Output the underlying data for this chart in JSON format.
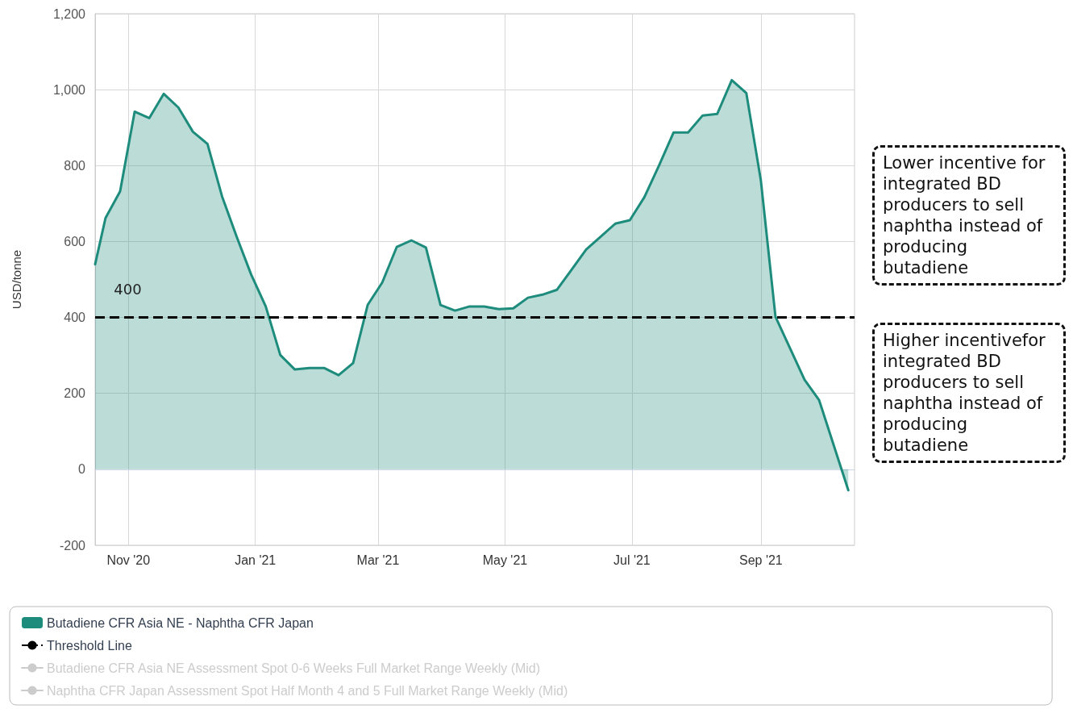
{
  "chart_data": {
    "type": "area",
    "ylabel": "USD/tonne",
    "x": [
      "2020-10-16",
      "2020-10-21",
      "2020-10-28",
      "2020-11-04",
      "2020-11-11",
      "2020-11-18",
      "2020-11-25",
      "2020-12-02",
      "2020-12-09",
      "2020-12-16",
      "2020-12-23",
      "2020-12-30",
      "2021-01-06",
      "2021-01-13",
      "2021-01-20",
      "2021-01-27",
      "2021-02-03",
      "2021-02-10",
      "2021-02-17",
      "2021-02-24",
      "2021-03-03",
      "2021-03-10",
      "2021-03-17",
      "2021-03-24",
      "2021-03-31",
      "2021-04-07",
      "2021-04-14",
      "2021-04-21",
      "2021-04-28",
      "2021-05-05",
      "2021-05-12",
      "2021-05-19",
      "2021-05-26",
      "2021-06-02",
      "2021-06-09",
      "2021-06-16",
      "2021-06-23",
      "2021-06-30",
      "2021-07-07",
      "2021-07-14",
      "2021-07-21",
      "2021-07-28",
      "2021-08-04",
      "2021-08-11",
      "2021-08-18",
      "2021-08-25",
      "2021-09-01",
      "2021-09-08",
      "2021-09-22",
      "2021-09-29",
      "2021-10-13"
    ],
    "series": [
      {
        "name": "Butadiene CFR Asia NE - Naphtha CFR Japan",
        "color": "#1e8c7c",
        "values": [
          540,
          662,
          732,
          942,
          925,
          989,
          953,
          889,
          857,
          719,
          613,
          513,
          429,
          301,
          263,
          267,
          267,
          248,
          280,
          433,
          492,
          586,
          603,
          584,
          433,
          418,
          429,
          429,
          422,
          424,
          452,
          460,
          473,
          526,
          579,
          613,
          647,
          656,
          717,
          800,
          887,
          887,
          932,
          936,
          1025,
          991,
          760,
          402,
          236,
          182,
          -55
        ]
      },
      {
        "name": "Butadiene CFR Asia NE Assessment Spot 0-6 Weeks Full Market Range Weekly (Mid)",
        "type": "line",
        "color": "#cccccc",
        "values": [
          null,
          null,
          null,
          null,
          null,
          null,
          null,
          null,
          null,
          null,
          null,
          null,
          null,
          null,
          null,
          null,
          null,
          null,
          null,
          null,
          null,
          null,
          null,
          null,
          null,
          null,
          null,
          null,
          null,
          null,
          null,
          null,
          null,
          null,
          null,
          null,
          null,
          null,
          null,
          null,
          null,
          null,
          null,
          null,
          null,
          null,
          null,
          null,
          null,
          null,
          null
        ]
      },
      {
        "name": "Naphtha CFR Japan Assessment Spot Half Month 4 and 5 Full Market Range Weekly (Mid)",
        "type": "line",
        "color": "#cccccc",
        "values": [
          null,
          null,
          null,
          null,
          null,
          null,
          null,
          null,
          null,
          null,
          null,
          null,
          null,
          null,
          null,
          null,
          null,
          null,
          null,
          null,
          null,
          null,
          null,
          null,
          null,
          null,
          null,
          null,
          null,
          null,
          null,
          null,
          null,
          null,
          null,
          null,
          null,
          null,
          null,
          null,
          null,
          null,
          null,
          null,
          null,
          null,
          null,
          null,
          null,
          null,
          null
        ]
      }
    ],
    "ref_lines": [
      {
        "axis": "y",
        "value": 400,
        "label": "Threshold Line",
        "color": "#000000",
        "line_style": "dashed"
      }
    ],
    "annotations": [
      {
        "text": "400",
        "x": "2020-11-01",
        "y": 400
      },
      "Lower incentive for integrated BD producers to sell naphtha instead of producing butadiene",
      "Higher incentivefor integrated BD producers to sell naphtha instead of producing butadiene"
    ],
    "xlim": [
      "2020-10-16",
      "2021-10-16"
    ],
    "xticks": [
      {
        "value": "2020-11-01",
        "label": "Nov '20"
      },
      {
        "value": "2021-01-01",
        "label": "Jan '21"
      },
      {
        "value": "2021-03-01",
        "label": "Mar '21"
      },
      {
        "value": "2021-05-01",
        "label": "May '21"
      },
      {
        "value": "2021-07-01",
        "label": "Jul '21"
      },
      {
        "value": "2021-09-01",
        "label": "Sep '21"
      }
    ],
    "ylim": [
      -200,
      1200
    ],
    "yticks": [
      -200,
      0,
      200,
      400,
      600,
      800,
      {
        "value": 1000,
        "label": "1,000"
      },
      {
        "value": 1200,
        "label": "1,200"
      }
    ],
    "grid": true,
    "legend": "bottom",
    "marker": "none",
    "line_style": "solid"
  }
}
